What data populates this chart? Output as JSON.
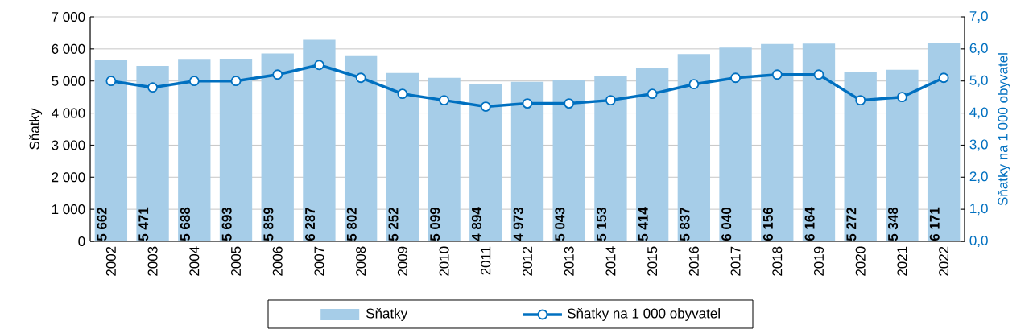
{
  "chart_data": {
    "type": "bar",
    "categories": [
      "2002",
      "2003",
      "2004",
      "2005",
      "2006",
      "2007",
      "2008",
      "2009",
      "2010",
      "2011",
      "2012",
      "2013",
      "2014",
      "2015",
      "2016",
      "2017",
      "2018",
      "2019",
      "2020",
      "2021",
      "2022"
    ],
    "series": [
      {
        "name": "Sňatky",
        "color": "#a6cde8",
        "values": [
          5662,
          5471,
          5688,
          5693,
          5859,
          6287,
          5802,
          5252,
          5099,
          4894,
          4973,
          5043,
          5153,
          5414,
          5837,
          6040,
          6156,
          6164,
          5272,
          5348,
          6171
        ],
        "value_labels": [
          "5 662",
          "5 471",
          "5 688",
          "5 693",
          "5 859",
          "6 287",
          "5 802",
          "5 252",
          "5 099",
          "4 894",
          "4 973",
          "5 043",
          "5 153",
          "5 414",
          "5 837",
          "6 040",
          "6 156",
          "6 164",
          "5 272",
          "5 348",
          "6 171"
        ]
      },
      {
        "name": "Sňatky na 1 000 obyvatel",
        "type": "line",
        "axis": "y2",
        "color": "#0070c0",
        "marker": "circle",
        "values": [
          5.0,
          4.8,
          5.0,
          5.0,
          5.2,
          5.5,
          5.1,
          4.6,
          4.4,
          4.2,
          4.3,
          4.3,
          4.4,
          4.6,
          4.9,
          5.1,
          5.2,
          5.2,
          4.4,
          4.5,
          5.1
        ]
      }
    ],
    "ylabel": "Sňatky",
    "y2label": "Sňatky na 1 000 obyvatel",
    "ylim": [
      0,
      7000
    ],
    "yticks": [
      {
        "value": 0,
        "label": "0"
      },
      {
        "value": 1000,
        "label": "1 000"
      },
      {
        "value": 2000,
        "label": "2 000"
      },
      {
        "value": 3000,
        "label": "3 000"
      },
      {
        "value": 4000,
        "label": "4 000"
      },
      {
        "value": 5000,
        "label": "5 000"
      },
      {
        "value": 6000,
        "label": "6 000"
      },
      {
        "value": 7000,
        "label": "7 000"
      }
    ],
    "y2lim": [
      0,
      7
    ],
    "y2ticks": [
      {
        "value": 0,
        "label": "0,0"
      },
      {
        "value": 1,
        "label": "1,0"
      },
      {
        "value": 2,
        "label": "2,0"
      },
      {
        "value": 3,
        "label": "3,0"
      },
      {
        "value": 4,
        "label": "4,0"
      },
      {
        "value": 5,
        "label": "5,0"
      },
      {
        "value": 6,
        "label": "6,0"
      },
      {
        "value": 7,
        "label": "7,0"
      }
    ],
    "grid": "y",
    "legend": "bottom"
  }
}
